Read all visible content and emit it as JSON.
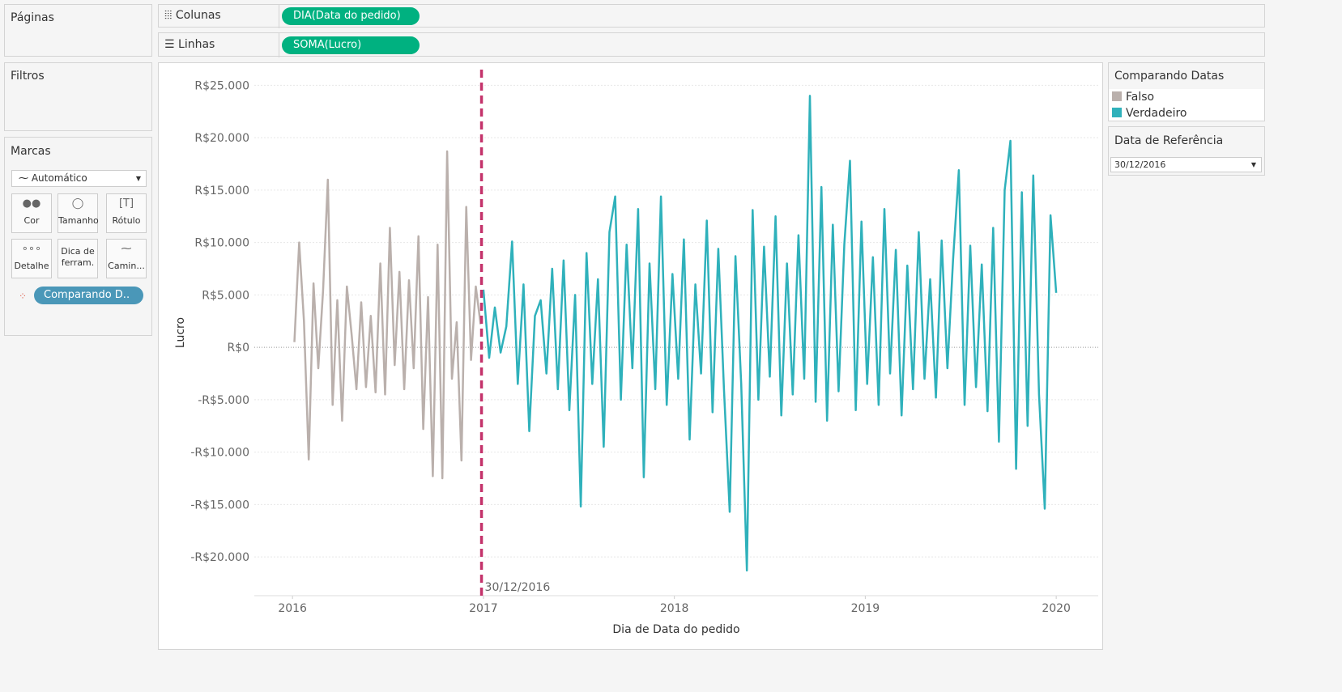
{
  "ui": {
    "pages": "Páginas",
    "columns_label": "Colunas",
    "columns_pill": "DIA(Data do pedido)",
    "rows_label": "Linhas",
    "rows_pill": "SOMA(Lucro)",
    "filters": "Filtros",
    "marks": "Marcas",
    "mark_type": "Automático",
    "cards": [
      "Cor",
      "Tamanho",
      "Rótulo",
      "Detalhe",
      "Dica de ferram.",
      "Camin..."
    ],
    "color_pill": "Comparando D..",
    "legend_title": "Comparando Datas",
    "parameter_title": "Data de Referência",
    "parameter_value": "30/12/2016"
  },
  "chart_data": {
    "type": "line",
    "x_label": "Dia de Data do pedido",
    "y_label": "Lucro",
    "xlim": [
      2015.8,
      2020.22
    ],
    "xticks": [
      2016,
      2017,
      2018,
      2019,
      2020
    ],
    "ylim": [
      -23700,
      26500
    ],
    "yticks": [
      {
        "value": -20000,
        "label": "-R$20.000"
      },
      {
        "value": -15000,
        "label": "-R$15.000"
      },
      {
        "value": -10000,
        "label": "-R$10.000"
      },
      {
        "value": -5000,
        "label": "-R$5.000"
      },
      {
        "value": 0,
        "label": "R$0"
      },
      {
        "value": 5000,
        "label": "R$5.000"
      },
      {
        "value": 10000,
        "label": "R$10.000"
      },
      {
        "value": 15000,
        "label": "R$15.000"
      },
      {
        "value": 20000,
        "label": "R$20.000"
      },
      {
        "value": 25000,
        "label": "R$25.000"
      }
    ],
    "grid": true,
    "reference_line": {
      "value": 2016.99,
      "label": "30/12/2016",
      "color": "#c4336b"
    },
    "series": [
      {
        "name": "Falso",
        "color": "#bab0ac",
        "x": [
          2016.01,
          2016.035,
          2016.06,
          2016.085,
          2016.11,
          2016.135,
          2016.16,
          2016.185,
          2016.21,
          2016.235,
          2016.26,
          2016.285,
          2016.31,
          2016.335,
          2016.36,
          2016.385,
          2016.41,
          2016.435,
          2016.46,
          2016.485,
          2016.51,
          2016.535,
          2016.56,
          2016.585,
          2016.61,
          2016.635,
          2016.66,
          2016.685,
          2016.71,
          2016.735,
          2016.76,
          2016.785,
          2016.81,
          2016.835,
          2016.86,
          2016.885,
          2016.91,
          2016.935,
          2016.96,
          2016.985
        ],
        "values": [
          500,
          10000,
          2500,
          -10700,
          6100,
          -2000,
          5400,
          16000,
          -5500,
          4500,
          -7000,
          5800,
          1200,
          -4000,
          4300,
          -3800,
          3000,
          -4300,
          8000,
          -4500,
          11400,
          -1700,
          7200,
          -4000,
          6400,
          -2000,
          10600,
          -7800,
          4800,
          -12300,
          9800,
          -12500,
          18700,
          -3000,
          2400,
          -10800,
          13400,
          -1200,
          5800,
          2200
        ]
      },
      {
        "name": "Verdadeiro",
        "color": "#2fb1bb",
        "x": [
          2017.0,
          2017.03,
          2017.06,
          2017.09,
          2017.12,
          2017.15,
          2017.18,
          2017.21,
          2017.24,
          2017.27,
          2017.3,
          2017.33,
          2017.36,
          2017.39,
          2017.42,
          2017.45,
          2017.48,
          2017.51,
          2017.54,
          2017.57,
          2017.6,
          2017.63,
          2017.66,
          2017.69,
          2017.72,
          2017.75,
          2017.78,
          2017.81,
          2017.84,
          2017.87,
          2017.9,
          2017.93,
          2017.96,
          2017.99,
          2018.02,
          2018.05,
          2018.08,
          2018.11,
          2018.14,
          2018.17,
          2018.2,
          2018.23,
          2018.26,
          2018.29,
          2018.32,
          2018.35,
          2018.38,
          2018.41,
          2018.44,
          2018.47,
          2018.5,
          2018.53,
          2018.56,
          2018.59,
          2018.62,
          2018.65,
          2018.68,
          2018.71,
          2018.74,
          2018.77,
          2018.8,
          2018.83,
          2018.86,
          2018.89,
          2018.92,
          2018.95,
          2018.98,
          2019.01,
          2019.04,
          2019.07,
          2019.1,
          2019.13,
          2019.16,
          2019.19,
          2019.22,
          2019.25,
          2019.28,
          2019.31,
          2019.34,
          2019.37,
          2019.4,
          2019.43,
          2019.46,
          2019.49,
          2019.52,
          2019.55,
          2019.58,
          2019.61,
          2019.64,
          2019.67,
          2019.7,
          2019.73,
          2019.76,
          2019.79,
          2019.82,
          2019.85,
          2019.88,
          2019.91,
          2019.94,
          2019.97,
          2020.0
        ],
        "values": [
          5500,
          -1000,
          3800,
          -500,
          2000,
          10100,
          -3500,
          6000,
          -8000,
          3000,
          4500,
          -2500,
          7500,
          -4000,
          8300,
          -6000,
          5000,
          -15200,
          9000,
          -3500,
          6500,
          -9500,
          11000,
          14400,
          -5000,
          9800,
          -2000,
          13200,
          -12400,
          8000,
          -4000,
          14400,
          -5500,
          7000,
          -3000,
          10300,
          -8800,
          6000,
          -2500,
          12100,
          -6200,
          9400,
          -4000,
          -15700,
          8700,
          -3500,
          -21300,
          13100,
          -5000,
          9600,
          -2800,
          12500,
          -6500,
          8000,
          -4500,
          10700,
          -3000,
          24000,
          -5200,
          15300,
          -7000,
          11700,
          -4200,
          9800,
          17800,
          -6000,
          12000,
          -3500,
          8600,
          -5500,
          13200,
          -2500,
          9300,
          -6500,
          7800,
          -4000,
          11000,
          -3000,
          6500,
          -4800,
          10200,
          -2000,
          8400,
          16900,
          -5500,
          9700,
          -3800,
          7900,
          -6100,
          11400,
          -9000,
          15000,
          19700,
          -11600,
          14800,
          -7500,
          16400,
          -4500,
          -15400,
          12600,
          5200
        ]
      }
    ]
  }
}
